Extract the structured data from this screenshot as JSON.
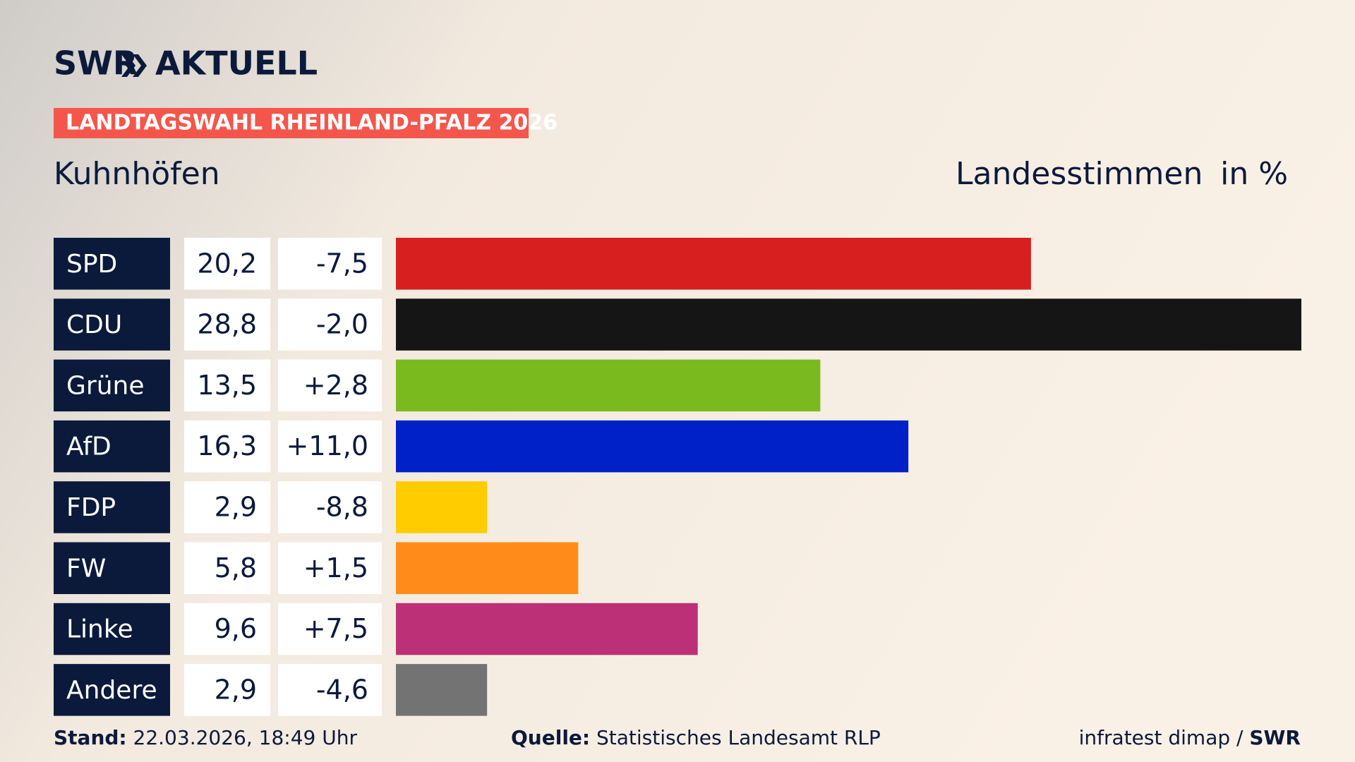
{
  "chart_data": {
    "type": "bar",
    "brand": "SWR",
    "brand_section": "AKTUELL",
    "banner": "LANDTAGSWAHL RHEINLAND-PFALZ 2026",
    "title": "Kuhnhöfen",
    "measure": "Landesstimmen",
    "unit": "in %",
    "categories": [
      "SPD",
      "CDU",
      "Grüne",
      "AfD",
      "FDP",
      "FW",
      "Linke",
      "Andere"
    ],
    "values": [
      20.2,
      28.8,
      13.5,
      16.3,
      2.9,
      5.8,
      9.6,
      2.9
    ],
    "value_labels": [
      "20,2",
      "28,8",
      "13,5",
      "16,3",
      "2,9",
      "5,8",
      "9,6",
      "2,9"
    ],
    "changes": [
      -7.5,
      -2.0,
      2.8,
      11.0,
      -8.8,
      1.5,
      7.5,
      -4.6
    ],
    "change_labels": [
      "-7,5",
      "-2,0",
      "+2,8",
      "+11,0",
      "-8,8",
      "+1,5",
      "+7,5",
      "-4,6"
    ],
    "colors": [
      "#d71f1f",
      "#151515",
      "#7aba1e",
      "#0021c8",
      "#ffcc00",
      "#ff8c1a",
      "#bb3076",
      "#737373"
    ],
    "xlim": [
      0,
      28.8
    ],
    "stand_label": "Stand:",
    "stand": "22.03.2026, 18:49 Uhr",
    "source_label": "Quelle:",
    "source": "Statistisches Landesamt RLP",
    "credit": "infratest dimap /",
    "credit_brand": "SWR"
  }
}
